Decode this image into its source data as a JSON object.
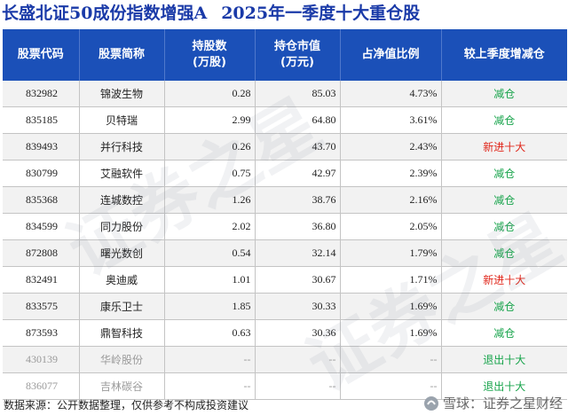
{
  "title": {
    "fund": "长盛北证50成份指数增强A",
    "report": "2025年一季度十大重仓股"
  },
  "table": {
    "headers": {
      "code": "股票代码",
      "name": "股票简称",
      "shares": "持股数",
      "shares_unit": "(万股)",
      "value": "持仓市值",
      "value_unit": "(万元)",
      "ratio": "占净值比例",
      "change": "较上季度增减仓"
    },
    "rows": [
      {
        "code": "832982",
        "name": "锦波生物",
        "shares": "0.28",
        "value": "85.03",
        "ratio": "4.73%",
        "change": "减仓"
      },
      {
        "code": "835185",
        "name": "贝特瑞",
        "shares": "2.99",
        "value": "64.80",
        "ratio": "3.61%",
        "change": "减仓"
      },
      {
        "code": "839493",
        "name": "并行科技",
        "shares": "0.26",
        "value": "43.70",
        "ratio": "2.43%",
        "change": "新进十大"
      },
      {
        "code": "830799",
        "name": "艾融软件",
        "shares": "0.75",
        "value": "42.97",
        "ratio": "2.39%",
        "change": "减仓"
      },
      {
        "code": "835368",
        "name": "连城数控",
        "shares": "1.26",
        "value": "38.76",
        "ratio": "2.16%",
        "change": "减仓"
      },
      {
        "code": "834599",
        "name": "同力股份",
        "shares": "2.02",
        "value": "36.80",
        "ratio": "2.05%",
        "change": "减仓"
      },
      {
        "code": "872808",
        "name": "曙光数创",
        "shares": "0.54",
        "value": "32.14",
        "ratio": "1.79%",
        "change": "减仓"
      },
      {
        "code": "832491",
        "name": "奥迪威",
        "shares": "1.01",
        "value": "30.67",
        "ratio": "1.71%",
        "change": "新进十大"
      },
      {
        "code": "833575",
        "name": "康乐卫士",
        "shares": "1.85",
        "value": "30.33",
        "ratio": "1.69%",
        "change": "减仓"
      },
      {
        "code": "873593",
        "name": "鼎智科技",
        "shares": "0.63",
        "value": "30.36",
        "ratio": "1.69%",
        "change": "减仓"
      },
      {
        "code": "430139",
        "name": "华岭股份",
        "shares": "--",
        "value": "--",
        "ratio": "--",
        "change": "退出十大"
      },
      {
        "code": "836077",
        "name": "吉林碳谷",
        "shares": "--",
        "value": "--",
        "ratio": "--",
        "change": "退出十大"
      }
    ]
  },
  "footer": {
    "source": "数据来源：公开数据整理，仅供参考不构成投资建议",
    "brand": "雪球：证券之星财经"
  },
  "watermark": {
    "text": "证券之星"
  },
  "colors": {
    "title": "#1a3aa8",
    "header_bg": "#1b50b8",
    "reduce": "#16a34a",
    "new_entry": "#e0261a",
    "exit": "#16a34a"
  }
}
